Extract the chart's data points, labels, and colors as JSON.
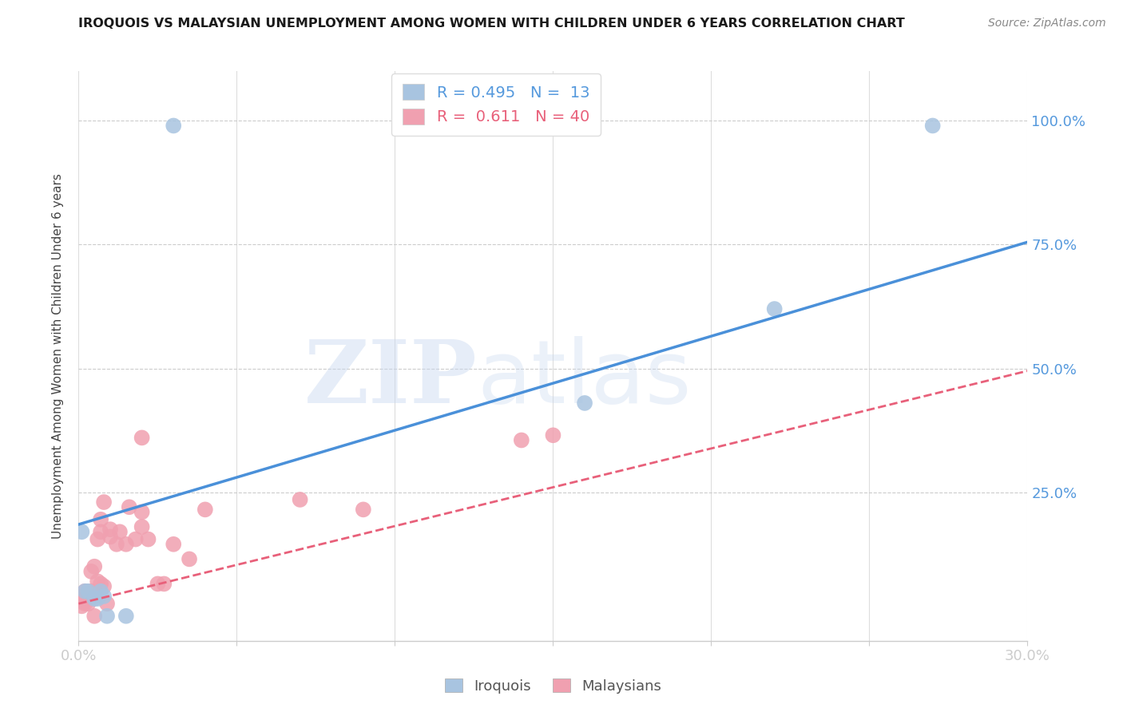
{
  "title": "IROQUOIS VS MALAYSIAN UNEMPLOYMENT AMONG WOMEN WITH CHILDREN UNDER 6 YEARS CORRELATION CHART",
  "source": "Source: ZipAtlas.com",
  "ylabel": "Unemployment Among Women with Children Under 6 years",
  "ytick_labels": [
    "100.0%",
    "75.0%",
    "50.0%",
    "25.0%"
  ],
  "ytick_values": [
    1.0,
    0.75,
    0.5,
    0.25
  ],
  "legend_label1": "Iroquois",
  "legend_label2": "Malaysians",
  "R1": 0.495,
  "N1": 13,
  "R2": 0.611,
  "N2": 40,
  "blue_color": "#a8c4e0",
  "pink_color": "#f0a0b0",
  "blue_line_color": "#4a90d9",
  "pink_line_color": "#e8607a",
  "blue_line_x0": 0.0,
  "blue_line_y0": 0.185,
  "blue_line_x1": 0.3,
  "blue_line_y1": 0.755,
  "pink_line_x0": 0.0,
  "pink_line_y0": 0.025,
  "pink_line_x1": 0.3,
  "pink_line_y1": 0.495,
  "iroquois_x": [
    0.001,
    0.002,
    0.003,
    0.005,
    0.006,
    0.007,
    0.008,
    0.009,
    0.015,
    0.16,
    0.22,
    0.27,
    0.03
  ],
  "iroquois_y": [
    0.17,
    0.05,
    0.05,
    0.035,
    0.035,
    0.05,
    0.04,
    0.0,
    0.0,
    0.43,
    0.62,
    0.99,
    0.99
  ],
  "malaysian_x": [
    0.001,
    0.001,
    0.001,
    0.002,
    0.002,
    0.003,
    0.003,
    0.004,
    0.004,
    0.005,
    0.005,
    0.006,
    0.007,
    0.007,
    0.008,
    0.009,
    0.01,
    0.012,
    0.013,
    0.015,
    0.016,
    0.018,
    0.02,
    0.02,
    0.022,
    0.025,
    0.027,
    0.03,
    0.035,
    0.04,
    0.07,
    0.09,
    0.14,
    0.15,
    0.005,
    0.006,
    0.007,
    0.008,
    0.01,
    0.02
  ],
  "malaysian_y": [
    0.02,
    0.03,
    0.04,
    0.025,
    0.05,
    0.025,
    0.04,
    0.05,
    0.09,
    0.04,
    0.1,
    0.07,
    0.065,
    0.17,
    0.06,
    0.025,
    0.16,
    0.145,
    0.17,
    0.145,
    0.22,
    0.155,
    0.18,
    0.21,
    0.155,
    0.065,
    0.065,
    0.145,
    0.115,
    0.215,
    0.235,
    0.215,
    0.355,
    0.365,
    0.0,
    0.155,
    0.195,
    0.23,
    0.175,
    0.36
  ],
  "xmin": 0.0,
  "xmax": 0.3,
  "ymin": -0.05,
  "ymax": 1.1,
  "scatter_size": 200
}
